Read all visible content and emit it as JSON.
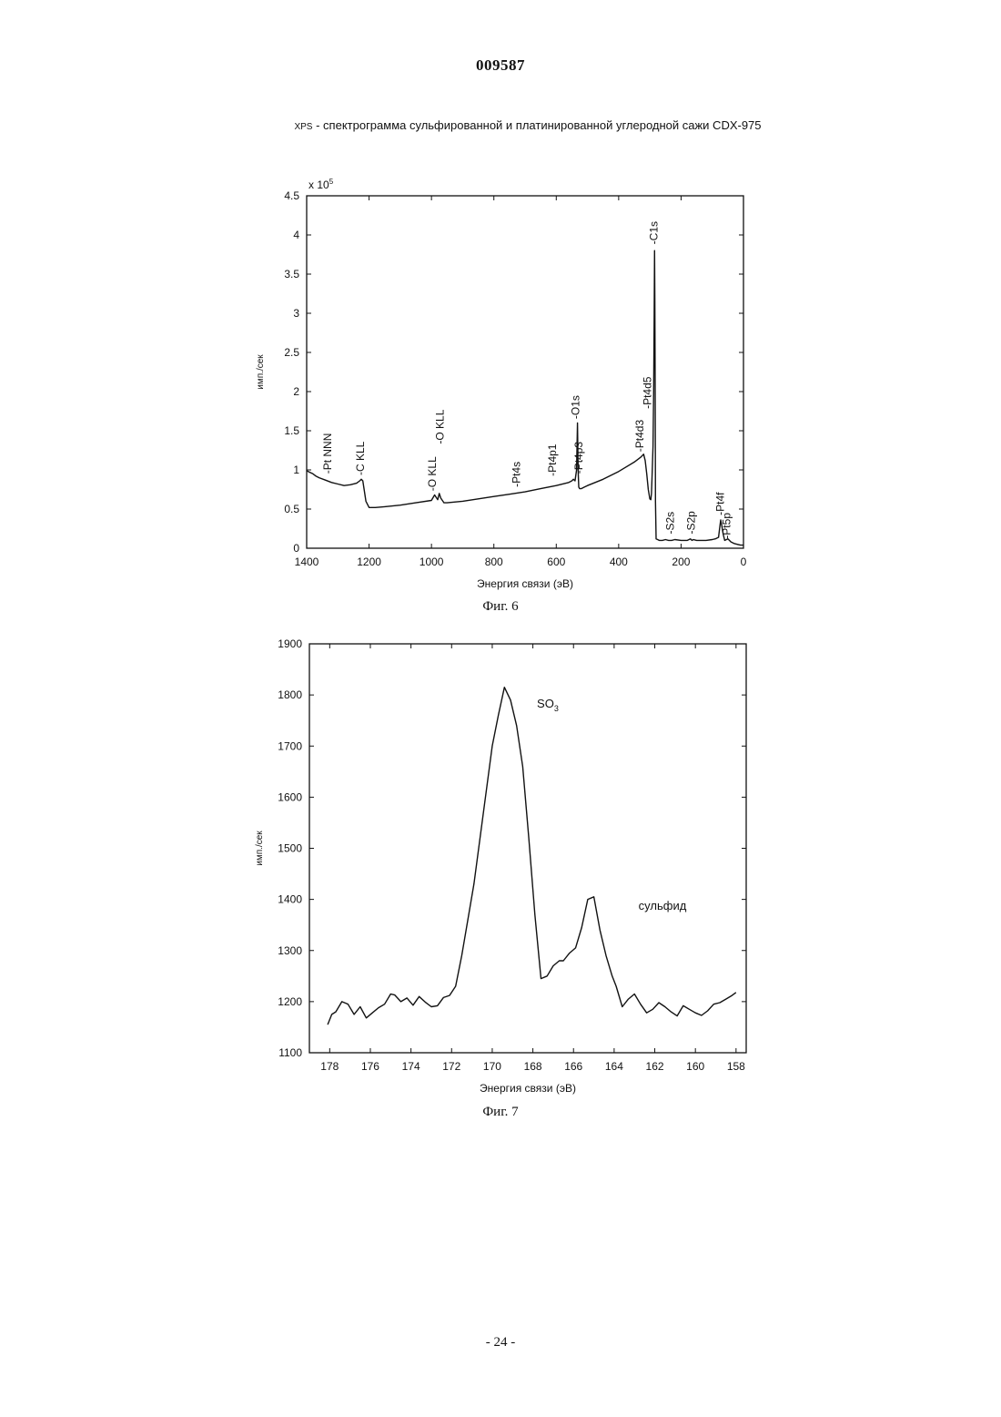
{
  "header": {
    "doc_number": "009587"
  },
  "footer": {
    "page": "- 24 -"
  },
  "figures": [
    {
      "caption": "Фиг. 6"
    },
    {
      "caption": "Фиг. 7"
    }
  ],
  "chart_data": [
    {
      "type": "line",
      "title_prefix": "XPS",
      "title": "- спектрограмма сульфированной и платинированной углеродной сажи CDX-975",
      "xlabel": "Энергия связи (эВ)",
      "ylabel": "имп./сек",
      "y_multiplier": "x 10",
      "y_multiplier_exp": "5",
      "xlim": [
        1400,
        0
      ],
      "ylim": [
        0,
        4.5
      ],
      "xticks": [
        1400,
        1200,
        1000,
        800,
        600,
        400,
        200,
        0
      ],
      "yticks": [
        0,
        0.5,
        1,
        1.5,
        2,
        2.5,
        3,
        3.5,
        4,
        4.5
      ],
      "series": [
        {
          "x": [
            1400,
            1390,
            1380,
            1370,
            1360,
            1340,
            1320,
            1300,
            1280,
            1260,
            1240,
            1230,
            1225,
            1220,
            1210,
            1200,
            1180,
            1150,
            1100,
            1050,
            1000,
            990,
            980,
            975,
            970,
            960,
            950,
            900,
            850,
            800,
            750,
            700,
            650,
            600,
            560,
            550,
            545,
            540,
            535,
            532,
            530,
            528,
            525,
            520,
            510,
            500,
            450,
            400,
            350,
            330,
            320,
            315,
            310,
            305,
            300,
            297,
            295,
            293,
            290,
            288,
            286,
            285,
            284,
            283,
            282,
            280,
            275,
            270,
            260,
            250,
            240,
            230,
            220,
            200,
            190,
            180,
            170,
            165,
            160,
            150,
            120,
            100,
            90,
            80,
            75,
            73,
            70,
            65,
            60,
            50,
            40,
            30,
            20,
            10,
            0
          ],
          "y": [
            0.99,
            0.97,
            0.95,
            0.92,
            0.9,
            0.87,
            0.84,
            0.82,
            0.8,
            0.81,
            0.83,
            0.86,
            0.88,
            0.86,
            0.6,
            0.52,
            0.52,
            0.53,
            0.55,
            0.58,
            0.61,
            0.68,
            0.62,
            0.7,
            0.64,
            0.58,
            0.58,
            0.6,
            0.63,
            0.66,
            0.69,
            0.72,
            0.76,
            0.8,
            0.84,
            0.86,
            0.88,
            0.86,
            1.0,
            1.6,
            1.0,
            0.78,
            0.76,
            0.76,
            0.78,
            0.8,
            0.88,
            0.98,
            1.1,
            1.16,
            1.2,
            1.12,
            0.95,
            0.75,
            0.63,
            0.62,
            0.7,
            0.9,
            1.3,
            2.0,
            3.0,
            3.8,
            3.2,
            2.0,
            0.6,
            0.12,
            0.11,
            0.1,
            0.1,
            0.11,
            0.1,
            0.1,
            0.11,
            0.1,
            0.1,
            0.1,
            0.12,
            0.1,
            0.11,
            0.1,
            0.1,
            0.11,
            0.12,
            0.14,
            0.3,
            0.36,
            0.3,
            0.18,
            0.1,
            0.12,
            0.08,
            0.06,
            0.05,
            0.04,
            0.04
          ]
        }
      ],
      "annotations": [
        {
          "label": "-Pt NNN",
          "x": 1330,
          "y": 0.95
        },
        {
          "label": "-C KLL",
          "x": 1225,
          "y": 0.93
        },
        {
          "label": "-O KLL",
          "x": 995,
          "y": 0.73
        },
        {
          "label": "-O KLL",
          "x": 970,
          "y": 1.33
        },
        {
          "label": "-Pt4s",
          "x": 725,
          "y": 0.78
        },
        {
          "label": "-Pt4p1",
          "x": 610,
          "y": 0.92
        },
        {
          "label": "-Pt4p3",
          "x": 525,
          "y": 0.95
        },
        {
          "label": "-O1s",
          "x": 535,
          "y": 1.65
        },
        {
          "label": "-Pt4d3",
          "x": 330,
          "y": 1.23
        },
        {
          "label": "-Pt4d5",
          "x": 305,
          "y": 1.78
        },
        {
          "label": "-C1s",
          "x": 285,
          "y": 3.88
        },
        {
          "label": "-S2s",
          "x": 232,
          "y": 0.18
        },
        {
          "label": "-S2p",
          "x": 165,
          "y": 0.18
        },
        {
          "label": "-Pt4f",
          "x": 72,
          "y": 0.42
        },
        {
          "label": "-Pt5p",
          "x": 52,
          "y": 0.12
        }
      ]
    },
    {
      "type": "line",
      "xlabel": "Энергия связи (эВ)",
      "ylabel": "имп./сек",
      "xlim": [
        179,
        157.5
      ],
      "ylim": [
        1100,
        1900
      ],
      "xticks": [
        178,
        176,
        174,
        172,
        170,
        168,
        166,
        164,
        162,
        160,
        158
      ],
      "yticks": [
        1100,
        1200,
        1300,
        1400,
        1500,
        1600,
        1700,
        1800,
        1900
      ],
      "series": [
        {
          "x": [
            178.1,
            177.9,
            177.7,
            177.4,
            177.1,
            176.8,
            176.5,
            176.2,
            175.9,
            175.6,
            175.3,
            175.0,
            174.8,
            174.5,
            174.2,
            173.9,
            173.6,
            173.3,
            173.0,
            172.7,
            172.4,
            172.1,
            171.8,
            171.5,
            171.2,
            170.9,
            170.6,
            170.3,
            170.0,
            169.7,
            169.4,
            169.1,
            168.8,
            168.5,
            168.2,
            167.9,
            167.6,
            167.3,
            167.0,
            166.7,
            166.5,
            166.2,
            165.9,
            165.6,
            165.3,
            165.0,
            164.7,
            164.4,
            164.1,
            163.9,
            163.6,
            163.3,
            163.0,
            162.7,
            162.4,
            162.1,
            161.8,
            161.5,
            161.2,
            160.9,
            160.6,
            160.3,
            160.0,
            159.7,
            159.4,
            159.1,
            158.8,
            158.5,
            158.2,
            158.0
          ],
          "y": [
            1155,
            1175,
            1180,
            1200,
            1195,
            1175,
            1190,
            1168,
            1178,
            1188,
            1195,
            1215,
            1213,
            1200,
            1207,
            1193,
            1210,
            1199,
            1190,
            1192,
            1208,
            1212,
            1230,
            1290,
            1360,
            1430,
            1520,
            1610,
            1700,
            1760,
            1815,
            1790,
            1740,
            1660,
            1520,
            1370,
            1245,
            1250,
            1270,
            1280,
            1280,
            1295,
            1305,
            1345,
            1400,
            1405,
            1340,
            1290,
            1250,
            1230,
            1190,
            1205,
            1215,
            1195,
            1178,
            1185,
            1198,
            1190,
            1180,
            1172,
            1192,
            1185,
            1178,
            1173,
            1182,
            1195,
            1198,
            1205,
            1212,
            1218
          ]
        }
      ],
      "annotations": [
        {
          "label": "SO",
          "sub": "3",
          "x": 167.8,
          "y": 1775
        },
        {
          "label": "сульфид",
          "x": 162.8,
          "y": 1380
        }
      ]
    }
  ]
}
